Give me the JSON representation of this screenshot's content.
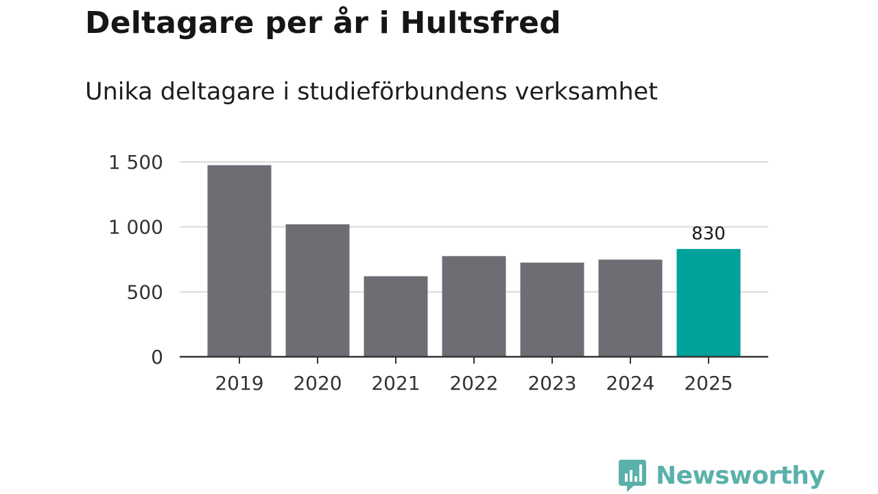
{
  "title": "Deltagare per år i Hultsfred",
  "subtitle": "Unika deltagare i studieförbundens verksamhet",
  "brand": {
    "name": "Newsworthy"
  },
  "colors": {
    "bar": "#6e6d74",
    "highlight": "#00a29a",
    "grid": "#d9d9d9",
    "axis": "#333333",
    "brand": "#5ab0ab"
  },
  "chart_data": {
    "type": "bar",
    "title": "Deltagare per år i Hultsfred",
    "subtitle": "Unika deltagare i studieförbundens verksamhet",
    "xlabel": "",
    "ylabel": "",
    "categories": [
      "2019",
      "2020",
      "2021",
      "2022",
      "2023",
      "2024",
      "2025"
    ],
    "values": [
      1475,
      1020,
      620,
      775,
      725,
      748,
      830
    ],
    "highlight_index": 6,
    "data_labels": [
      {
        "index": 6,
        "text": "830"
      }
    ],
    "ylim": [
      0,
      1500
    ],
    "yticks": [
      0,
      500,
      1000,
      1500
    ],
    "ytick_labels": [
      "0",
      "500",
      "1 000",
      "1 500"
    ],
    "grid": true,
    "legend": "none"
  }
}
